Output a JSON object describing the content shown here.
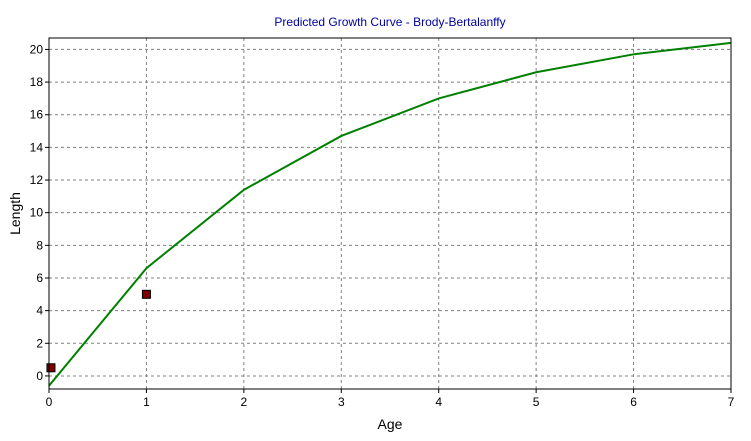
{
  "chart_data": {
    "type": "line",
    "title": "Predicted Growth Curve - Brody-Bertalanffy",
    "xlabel": "Age",
    "ylabel": "Length",
    "xlim": [
      0,
      7
    ],
    "ylim": [
      -0.8,
      20.7
    ],
    "xticks": [
      0,
      1,
      2,
      3,
      4,
      5,
      6,
      7
    ],
    "yticks": [
      0,
      2,
      4,
      6,
      8,
      10,
      12,
      14,
      16,
      18,
      20
    ],
    "grid": true,
    "series": [
      {
        "type": "line",
        "color": "#008000",
        "x": [
          0,
          1,
          2,
          3,
          4,
          5,
          6,
          7
        ],
        "values": [
          -0.6,
          6.6,
          11.4,
          14.7,
          17.0,
          18.6,
          19.7,
          20.4
        ]
      },
      {
        "type": "scatter",
        "color": "#800000",
        "marker": "square",
        "x": [
          0.02,
          1
        ],
        "values": [
          0.5,
          5.0
        ]
      }
    ]
  }
}
